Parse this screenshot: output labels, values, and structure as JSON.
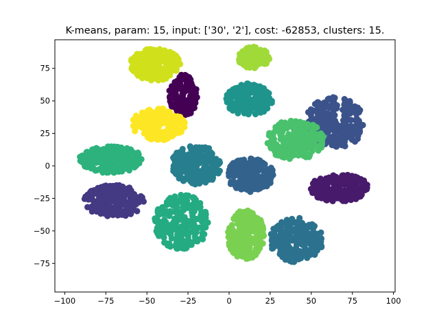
{
  "chart_data": {
    "type": "scatter",
    "title": "K-means, param: 15, input: ['30', '2'], cost: -62853, clusters: 15.",
    "xlabel": "",
    "ylabel": "",
    "xlim": [
      -106,
      101
    ],
    "ylim": [
      -97,
      97
    ],
    "xticks": [
      -100,
      -75,
      -50,
      -25,
      0,
      25,
      50,
      75,
      100
    ],
    "yticks": [
      -75,
      -50,
      -25,
      0,
      25,
      50,
      75
    ],
    "xtick_labels": [
      "−100",
      "−75",
      "−50",
      "−25",
      "0",
      "25",
      "50",
      "75",
      "100"
    ],
    "ytick_labels": [
      "−75",
      "−50",
      "−25",
      "0",
      "25",
      "50",
      "75"
    ],
    "grid": false,
    "legend": "none",
    "clusters": [
      {
        "center": [
          -45,
          78
        ],
        "spread": [
          16,
          13
        ],
        "color": "#d0e11c",
        "count": 240
      },
      {
        "center": [
          -28,
          54
        ],
        "spread": [
          9,
          17
        ],
        "color": "#440154",
        "count": 170
      },
      {
        "center": [
          -43,
          32
        ],
        "spread": [
          17,
          13
        ],
        "color": "#fde725",
        "count": 220
      },
      {
        "center": [
          15,
          83
        ],
        "spread": [
          10,
          9
        ],
        "color": "#a0da39",
        "count": 140
      },
      {
        "center": [
          12,
          51
        ],
        "spread": [
          15,
          13
        ],
        "color": "#1f948c",
        "count": 210
      },
      {
        "center": [
          64,
          33
        ],
        "spread": [
          19,
          21
        ],
        "color": "#3b528b",
        "count": 240
      },
      {
        "center": [
          40,
          20
        ],
        "spread": [
          19,
          16
        ],
        "color": "#4ac16d",
        "count": 230
      },
      {
        "center": [
          -72,
          5
        ],
        "spread": [
          20,
          11
        ],
        "color": "#2db27d",
        "count": 230
      },
      {
        "center": [
          -20,
          1
        ],
        "spread": [
          16,
          16
        ],
        "color": "#277f8e",
        "count": 220
      },
      {
        "center": [
          13,
          -7
        ],
        "spread": [
          15,
          14
        ],
        "color": "#33638d",
        "count": 200
      },
      {
        "center": [
          67,
          -17
        ],
        "spread": [
          19,
          11
        ],
        "color": "#481a6c",
        "count": 220
      },
      {
        "center": [
          -70,
          -27
        ],
        "spread": [
          19,
          13
        ],
        "color": "#443983",
        "count": 230
      },
      {
        "center": [
          -29,
          -43
        ],
        "spread": [
          18,
          22
        ],
        "color": "#25ab82",
        "count": 250
      },
      {
        "center": [
          10,
          -53
        ],
        "spread": [
          12,
          20
        ],
        "color": "#7ad151",
        "count": 210
      },
      {
        "center": [
          41,
          -57
        ],
        "spread": [
          17,
          18
        ],
        "color": "#2c728e",
        "count": 230
      }
    ]
  }
}
